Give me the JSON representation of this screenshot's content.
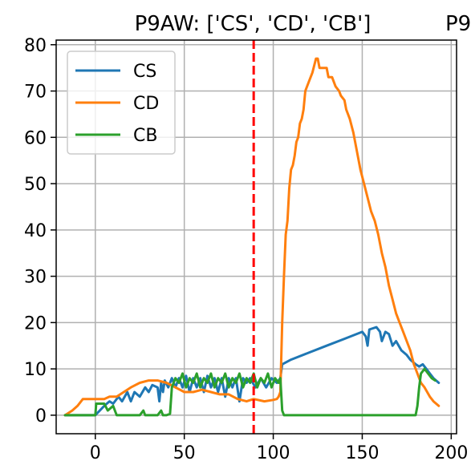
{
  "chart_data": {
    "type": "line",
    "title": "P9AW: ['CS', 'CD', 'CB']",
    "title_clipped": "P9",
    "xlabel": "",
    "ylabel": "",
    "xlim": [
      -22,
      203
    ],
    "ylim": [
      -4,
      81
    ],
    "x_ticks": [
      0,
      50,
      100,
      150,
      200
    ],
    "y_ticks": [
      0,
      10,
      20,
      30,
      40,
      50,
      60,
      70,
      80
    ],
    "grid": true,
    "legend_position": "upper-left",
    "vertical_marker": {
      "x": 89,
      "color": "#ff0000",
      "style": "dashed"
    },
    "series": [
      {
        "name": "CS",
        "color": "#1f77b4",
        "points": [
          [
            -17,
            0
          ],
          [
            -10,
            0
          ],
          [
            0,
            0
          ],
          [
            5,
            2
          ],
          [
            8,
            3
          ],
          [
            10,
            2.5
          ],
          [
            13,
            4
          ],
          [
            15,
            3
          ],
          [
            18,
            5
          ],
          [
            20,
            3
          ],
          [
            22,
            5
          ],
          [
            25,
            4
          ],
          [
            28,
            6
          ],
          [
            30,
            5
          ],
          [
            32,
            6.5
          ],
          [
            35,
            6
          ],
          [
            36,
            3
          ],
          [
            37,
            7
          ],
          [
            38,
            5
          ],
          [
            39,
            7.5
          ],
          [
            41,
            6
          ],
          [
            43,
            8
          ],
          [
            45,
            6
          ],
          [
            47,
            8
          ],
          [
            49,
            6
          ],
          [
            51,
            8.5
          ],
          [
            53,
            5
          ],
          [
            55,
            8
          ],
          [
            57,
            6
          ],
          [
            59,
            8
          ],
          [
            61,
            5
          ],
          [
            63,
            8.5
          ],
          [
            65,
            6
          ],
          [
            67,
            8
          ],
          [
            69,
            5
          ],
          [
            71,
            8
          ],
          [
            73,
            4
          ],
          [
            75,
            8
          ],
          [
            77,
            6
          ],
          [
            79,
            8
          ],
          [
            81,
            3
          ],
          [
            83,
            8
          ],
          [
            85,
            7
          ],
          [
            87,
            8
          ],
          [
            90,
            6
          ],
          [
            93,
            8
          ],
          [
            96,
            6
          ],
          [
            99,
            8
          ],
          [
            102,
            7
          ],
          [
            104,
            8
          ],
          [
            105,
            11
          ],
          [
            110,
            12
          ],
          [
            120,
            13.5
          ],
          [
            130,
            15
          ],
          [
            140,
            16.5
          ],
          [
            150,
            18
          ],
          [
            152,
            17
          ],
          [
            153,
            15
          ],
          [
            154,
            18.5
          ],
          [
            158,
            19
          ],
          [
            160,
            18
          ],
          [
            161,
            16
          ],
          [
            163,
            18
          ],
          [
            165,
            17.5
          ],
          [
            167,
            15
          ],
          [
            169,
            16
          ],
          [
            172,
            14
          ],
          [
            175,
            13
          ],
          [
            177,
            12
          ],
          [
            180,
            11
          ],
          [
            182,
            10.5
          ],
          [
            184,
            11
          ],
          [
            186,
            10
          ],
          [
            188,
            9
          ],
          [
            190,
            8
          ],
          [
            193,
            7
          ]
        ]
      },
      {
        "name": "CD",
        "color": "#ff7f0e",
        "points": [
          [
            -17,
            0
          ],
          [
            -13,
            1
          ],
          [
            -10,
            2
          ],
          [
            -7,
            3.5
          ],
          [
            0,
            3.5
          ],
          [
            5,
            3.5
          ],
          [
            8,
            4
          ],
          [
            12,
            4
          ],
          [
            16,
            5
          ],
          [
            20,
            6
          ],
          [
            25,
            7
          ],
          [
            30,
            7.5
          ],
          [
            35,
            7.5
          ],
          [
            40,
            7
          ],
          [
            45,
            6
          ],
          [
            50,
            5
          ],
          [
            55,
            5
          ],
          [
            60,
            5.5
          ],
          [
            65,
            5
          ],
          [
            70,
            4.5
          ],
          [
            75,
            4.5
          ],
          [
            80,
            3.5
          ],
          [
            85,
            3
          ],
          [
            89,
            3.5
          ],
          [
            95,
            3
          ],
          [
            100,
            3.3
          ],
          [
            102,
            3.5
          ],
          [
            103,
            4
          ],
          [
            104,
            5
          ],
          [
            105,
            20
          ],
          [
            106,
            30
          ],
          [
            107,
            39
          ],
          [
            108,
            42
          ],
          [
            109,
            49
          ],
          [
            110,
            53
          ],
          [
            111,
            54
          ],
          [
            112,
            56
          ],
          [
            113,
            59
          ],
          [
            114,
            60
          ],
          [
            115,
            63
          ],
          [
            116,
            64
          ],
          [
            117,
            66
          ],
          [
            118,
            70
          ],
          [
            120,
            72
          ],
          [
            122,
            74
          ],
          [
            124,
            77
          ],
          [
            125,
            77
          ],
          [
            126,
            75
          ],
          [
            130,
            75
          ],
          [
            131,
            73
          ],
          [
            133,
            73
          ],
          [
            135,
            71
          ],
          [
            137,
            70
          ],
          [
            138,
            69
          ],
          [
            140,
            68
          ],
          [
            141,
            66
          ],
          [
            143,
            64
          ],
          [
            145,
            61
          ],
          [
            147,
            57
          ],
          [
            149,
            53
          ],
          [
            151,
            50
          ],
          [
            153,
            47
          ],
          [
            155,
            44
          ],
          [
            157,
            42
          ],
          [
            159,
            39
          ],
          [
            161,
            35
          ],
          [
            163,
            32
          ],
          [
            165,
            28
          ],
          [
            167,
            25
          ],
          [
            169,
            22
          ],
          [
            171,
            20
          ],
          [
            173,
            18
          ],
          [
            175,
            16
          ],
          [
            177,
            14
          ],
          [
            179,
            11
          ],
          [
            181,
            9
          ],
          [
            183,
            7
          ],
          [
            185,
            6
          ],
          [
            188,
            4
          ],
          [
            190,
            3
          ],
          [
            193,
            2
          ]
        ]
      },
      {
        "name": "CB",
        "color": "#2ca02c",
        "points": [
          [
            -17,
            0
          ],
          [
            -10,
            0
          ],
          [
            -5,
            0
          ],
          [
            0,
            0
          ],
          [
            0.5,
            2.5
          ],
          [
            5,
            2.5
          ],
          [
            7,
            1
          ],
          [
            10,
            2
          ],
          [
            12,
            0
          ],
          [
            15,
            0
          ],
          [
            25,
            0
          ],
          [
            27,
            1
          ],
          [
            28,
            0
          ],
          [
            35,
            0
          ],
          [
            37,
            1
          ],
          [
            38,
            0
          ],
          [
            40,
            0
          ],
          [
            42,
            0.3
          ],
          [
            43,
            6
          ],
          [
            45,
            8
          ],
          [
            47,
            7
          ],
          [
            49,
            9
          ],
          [
            51,
            6
          ],
          [
            53,
            8
          ],
          [
            55,
            7
          ],
          [
            57,
            9
          ],
          [
            59,
            6
          ],
          [
            61,
            8
          ],
          [
            63,
            7
          ],
          [
            65,
            9
          ],
          [
            67,
            6
          ],
          [
            69,
            8
          ],
          [
            71,
            7
          ],
          [
            73,
            9
          ],
          [
            75,
            6
          ],
          [
            77,
            8
          ],
          [
            79,
            7
          ],
          [
            81,
            9
          ],
          [
            83,
            6
          ],
          [
            85,
            8
          ],
          [
            87,
            7
          ],
          [
            89,
            9
          ],
          [
            91,
            6
          ],
          [
            93,
            8
          ],
          [
            95,
            7
          ],
          [
            97,
            9
          ],
          [
            99,
            6
          ],
          [
            101,
            8
          ],
          [
            103,
            7
          ],
          [
            104,
            8
          ],
          [
            105,
            1
          ],
          [
            106,
            0
          ],
          [
            115,
            0
          ],
          [
            130,
            0
          ],
          [
            145,
            0
          ],
          [
            160,
            0
          ],
          [
            175,
            0
          ],
          [
            180,
            0
          ],
          [
            181,
            2
          ],
          [
            182,
            6
          ],
          [
            183,
            9
          ],
          [
            185,
            10
          ],
          [
            187,
            9
          ],
          [
            189,
            8
          ],
          [
            191,
            7.5
          ]
        ]
      }
    ]
  }
}
